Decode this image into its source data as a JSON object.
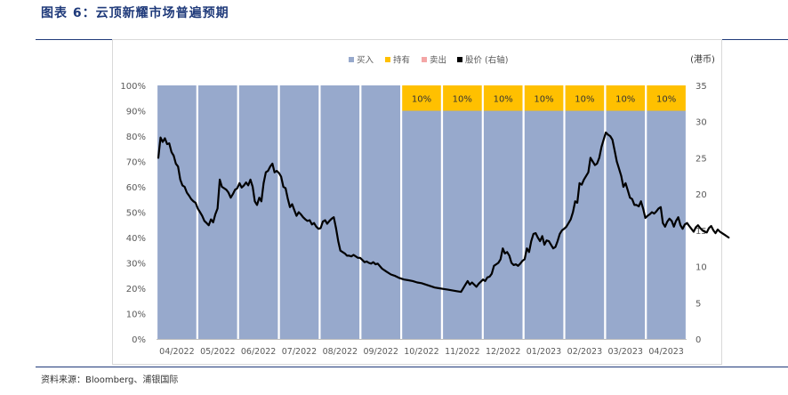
{
  "figure": {
    "title": "图表 6：云顶新耀市场普遍预期",
    "source": "资料来源：Bloomberg、浦银国际"
  },
  "colors": {
    "buy": "#97a9cc",
    "hold": "#ffc000",
    "sell": "#f4a6a6",
    "price": "#000000",
    "title": "#1f3a7a"
  },
  "chart_data": {
    "type": "bar",
    "categories": [
      "04/2022",
      "05/2022",
      "06/2022",
      "07/2022",
      "08/2022",
      "09/2022",
      "10/2022",
      "11/2022",
      "12/2022",
      "01/2023",
      "02/2023",
      "03/2023",
      "04/2023"
    ],
    "legend": [
      "买入",
      "持有",
      "卖出",
      "股价 (右轴)"
    ],
    "legend_position": "top",
    "right_axis_unit": "(港币)",
    "y_left_ticks": [
      "0%",
      "10%",
      "20%",
      "30%",
      "40%",
      "50%",
      "60%",
      "70%",
      "80%",
      "90%",
      "100%"
    ],
    "y_right_ticks": [
      "0",
      "5",
      "10",
      "15",
      "20",
      "25",
      "30",
      "35"
    ],
    "ylim_left": [
      0,
      100
    ],
    "ylim_right": [
      0,
      35
    ],
    "grid": false,
    "series": [
      {
        "name": "买入",
        "values": [
          100,
          100,
          100,
          100,
          100,
          100,
          90,
          90,
          90,
          90,
          90,
          90,
          90
        ]
      },
      {
        "name": "持有",
        "values": [
          0,
          0,
          0,
          0,
          0,
          0,
          10,
          10,
          10,
          10,
          10,
          10,
          10
        ],
        "labels": [
          "",
          "",
          "",
          "",
          "",
          "",
          "10%",
          "10%",
          "10%",
          "10%",
          "10%",
          "10%",
          "10%"
        ]
      },
      {
        "name": "卖出",
        "values": [
          0,
          0,
          0,
          0,
          0,
          0,
          0,
          0,
          0,
          0,
          0,
          0,
          0
        ]
      }
    ],
    "price_series": {
      "name": "股价 (右轴)",
      "x": [
        0.0,
        0.05,
        0.1,
        0.15,
        0.2,
        0.25,
        0.3,
        0.35,
        0.4,
        0.45,
        0.5,
        0.55,
        0.6,
        0.65,
        0.7,
        0.75,
        0.8,
        0.85,
        0.9,
        0.95,
        1.0,
        1.05,
        1.1,
        1.15,
        1.2,
        1.25,
        1.3,
        1.35,
        1.4,
        1.45,
        1.5,
        1.55,
        1.6,
        1.65,
        1.7,
        1.75,
        1.8,
        1.85,
        1.9,
        1.95,
        2.0,
        2.05,
        2.1,
        2.15,
        2.2,
        2.25,
        2.3,
        2.35,
        2.4,
        2.45,
        2.5,
        2.55,
        2.6,
        2.65,
        2.7,
        2.75,
        2.8,
        2.85,
        2.9,
        2.95,
        3.0,
        3.05,
        3.1,
        3.15,
        3.2,
        3.25,
        3.3,
        3.35,
        3.4,
        3.45,
        3.5,
        3.55,
        3.6,
        3.65,
        3.7,
        3.75,
        3.8,
        3.85,
        3.9,
        3.95,
        4.0,
        4.05,
        4.1,
        4.15,
        4.2,
        4.25,
        4.3,
        4.35,
        4.4,
        4.45,
        4.5,
        4.55,
        4.6,
        4.65,
        4.7,
        4.75,
        4.8,
        4.85,
        4.9,
        4.95,
        5.0,
        5.1,
        5.2,
        5.3,
        5.4,
        5.5,
        5.6,
        5.7,
        5.8,
        5.9,
        6.0,
        6.1,
        6.2,
        6.3,
        6.4,
        6.5,
        6.6,
        6.7,
        6.8,
        6.9,
        7.0,
        7.05,
        7.1,
        7.15,
        7.2,
        7.25,
        7.3,
        7.35,
        7.4,
        7.45,
        7.5,
        7.55,
        7.6,
        7.65,
        7.7,
        7.75,
        7.8,
        7.85,
        7.9,
        7.95,
        8.0,
        8.05,
        8.1,
        8.15,
        8.2,
        8.25,
        8.3,
        8.35,
        8.4,
        8.45,
        8.5,
        8.55,
        8.6,
        8.65,
        8.7,
        8.75,
        8.8,
        8.85,
        8.9,
        8.95,
        9.0,
        9.05,
        9.1,
        9.15,
        9.2,
        9.25,
        9.3,
        9.35,
        9.4,
        9.45,
        9.5,
        9.55,
        9.6,
        9.65,
        9.7,
        9.75,
        9.8,
        9.85,
        9.9,
        9.95,
        10.0,
        10.05,
        10.1,
        10.15,
        10.2,
        10.25,
        10.3,
        10.35,
        10.4,
        10.45,
        10.5,
        10.55,
        10.6,
        10.65,
        10.7,
        10.75,
        10.8,
        10.85,
        10.9,
        10.95,
        11.0,
        11.05,
        11.1,
        11.15,
        11.2,
        11.25,
        11.3,
        11.35,
        11.4,
        11.45,
        11.5,
        11.55,
        11.6,
        11.65,
        11.7,
        11.75,
        11.8,
        11.85,
        11.9,
        11.95,
        12.0,
        12.05,
        12.1,
        12.15,
        12.2,
        12.25,
        12.3,
        12.35,
        12.4,
        12.45,
        12.5,
        12.55,
        12.6,
        12.65,
        12.7,
        12.75,
        12.8,
        12.85,
        12.9,
        12.95,
        13.0
      ],
      "y": [
        25.0,
        27.8,
        27.2,
        27.7,
        26.9,
        27.0,
        25.8,
        25.3,
        24.2,
        23.8,
        22.0,
        21.2,
        21.0,
        20.2,
        19.8,
        19.3,
        19.0,
        18.8,
        18.0,
        17.5,
        17.0,
        16.3,
        16.0,
        15.7,
        16.5,
        16.1,
        17.2,
        18.0,
        22.0,
        21.0,
        20.8,
        20.6,
        20.2,
        19.5,
        20.0,
        20.6,
        20.8,
        21.5,
        20.9,
        21.2,
        21.6,
        21.2,
        22.0,
        21.0,
        19.0,
        18.5,
        19.5,
        19.0,
        21.5,
        23.0,
        23.2,
        23.8,
        24.2,
        23.0,
        23.2,
        22.9,
        22.4,
        21.0,
        20.8,
        19.4,
        18.2,
        18.6,
        17.8,
        17.0,
        17.5,
        17.2,
        16.8,
        16.5,
        16.3,
        16.4,
        15.8,
        16.0,
        15.5,
        15.2,
        15.3,
        16.2,
        16.4,
        15.9,
        16.3,
        16.6,
        16.8,
        15.3,
        13.5,
        12.2,
        12.0,
        11.8,
        11.5,
        11.5,
        11.4,
        11.6,
        11.4,
        11.2,
        11.2,
        10.9,
        10.6,
        10.7,
        10.5,
        10.4,
        10.6,
        10.3,
        10.4,
        9.7,
        9.3,
        8.9,
        8.7,
        8.4,
        8.2,
        8.1,
        8.0,
        7.8,
        7.7,
        7.5,
        7.3,
        7.1,
        7.0,
        6.9,
        6.8,
        6.7,
        6.6,
        6.5,
        7.5,
        8.0,
        7.5,
        7.8,
        7.5,
        7.2,
        7.6,
        7.9,
        8.2,
        8.0,
        8.5,
        8.6,
        9.0,
        10.1,
        10.3,
        10.5,
        11.0,
        12.5,
        11.8,
        12.0,
        11.5,
        10.5,
        10.2,
        10.3,
        10.1,
        10.4,
        10.8,
        11.0,
        12.5,
        12.0,
        13.5,
        14.5,
        14.6,
        14.0,
        13.5,
        14.2,
        13.0,
        13.6,
        13.5,
        13.0,
        12.5,
        12.7,
        13.5,
        14.5,
        15.0,
        15.2,
        15.5,
        16.0,
        16.5,
        17.5,
        19.0,
        18.8,
        21.5,
        21.3,
        22.0,
        22.5,
        23.0,
        25.0,
        24.5,
        24.0,
        24.2,
        25.0,
        26.5,
        27.5,
        28.5,
        28.2,
        28.0,
        27.5,
        26.0,
        24.5,
        23.5,
        22.5,
        21.0,
        21.5,
        20.5,
        19.5,
        19.3,
        18.5,
        18.5,
        18.3,
        19.0,
        18.0,
        16.7,
        17.0,
        17.2,
        17.5,
        17.3,
        17.6,
        18.0,
        18.2,
        16.0,
        15.5,
        16.2,
        16.6,
        16.3,
        15.5,
        16.3,
        16.8,
        15.7,
        15.2,
        15.8,
        16.0,
        15.6,
        15.2,
        14.8,
        15.4,
        15.7,
        15.3,
        15.0,
        14.8,
        14.7,
        15.3,
        15.6,
        15.0,
        14.6,
        15.1,
        14.8,
        14.6,
        14.4,
        14.2,
        14.0
      ]
    }
  }
}
